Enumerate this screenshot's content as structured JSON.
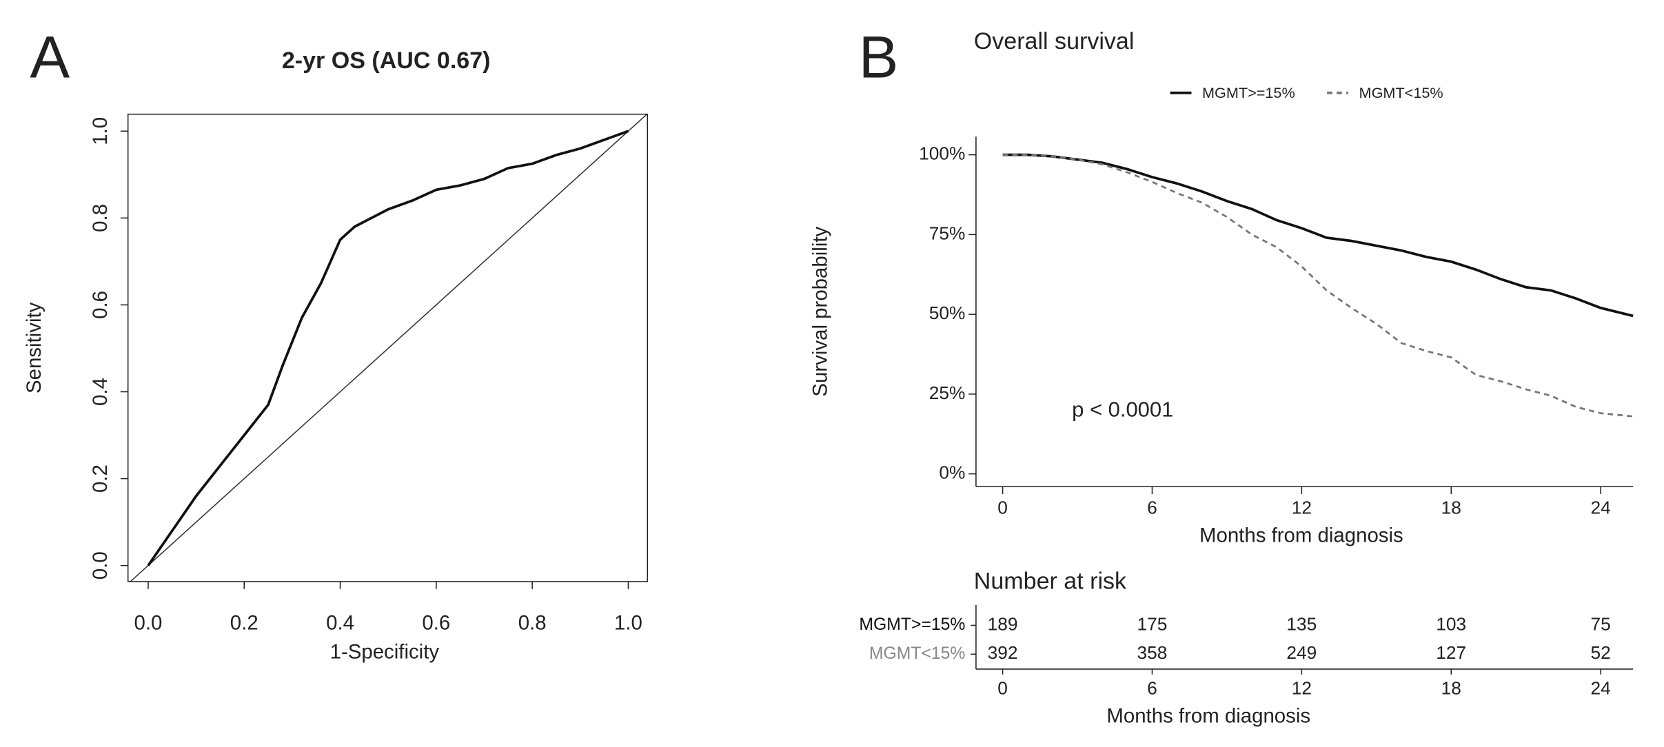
{
  "chart_data": [
    {
      "type": "line",
      "panel": "A",
      "title": "2-yr OS (AUC 0.67)",
      "xlabel": "1-Specificity",
      "ylabel": "Sensitivity",
      "xlim": [
        -0.042,
        1.04
      ],
      "ylim": [
        -0.037,
        1.039
      ],
      "xticks": [
        {
          "value": 0,
          "label": "0.0"
        },
        {
          "value": 0.2,
          "label": "0.2"
        },
        {
          "value": 0.4,
          "label": "0.4"
        },
        {
          "value": 0.6,
          "label": "0.6"
        },
        {
          "value": 0.8,
          "label": "0.8"
        },
        {
          "value": 1,
          "label": "1.0"
        }
      ],
      "yticks": [
        {
          "value": 0,
          "label": "0.0"
        },
        {
          "value": 0.2,
          "label": "0.2"
        },
        {
          "value": 0.4,
          "label": "0.4"
        },
        {
          "value": 0.6,
          "label": "0.6"
        },
        {
          "value": 0.8,
          "label": "0.8"
        },
        {
          "value": 1,
          "label": "1.0"
        }
      ],
      "diagonal": true,
      "x": [
        0,
        0.05,
        0.1,
        0.15,
        0.2,
        0.25,
        0.28,
        0.32,
        0.36,
        0.4,
        0.43,
        0.5,
        0.55,
        0.6,
        0.65,
        0.7,
        0.75,
        0.8,
        0.85,
        0.9,
        0.95,
        1
      ],
      "series": [
        {
          "color": "#111111",
          "linestyle": "solid",
          "values": [
            0,
            0.08,
            0.16,
            0.23,
            0.3,
            0.37,
            0.46,
            0.57,
            0.65,
            0.75,
            0.78,
            0.82,
            0.84,
            0.865,
            0.875,
            0.89,
            0.915,
            0.925,
            0.945,
            0.96,
            0.98,
            1
          ]
        }
      ]
    },
    {
      "type": "line",
      "panel": "B",
      "title": "Overall survival",
      "xlabel": "Months from diagnosis",
      "ylabel": "Survival probability",
      "annotation": "p < 0.0001",
      "legend": "top",
      "xlim": [
        -1.07,
        25.3
      ],
      "ylim": [
        -4,
        105.7
      ],
      "xticks": [
        0,
        6,
        12,
        18,
        24
      ],
      "yticks": [
        {
          "value": 0,
          "label": "0%"
        },
        {
          "value": 25,
          "label": "25%"
        },
        {
          "value": 50,
          "label": "50%"
        },
        {
          "value": 75,
          "label": "75%"
        },
        {
          "value": 100,
          "label": "100%"
        }
      ],
      "x": [
        0,
        1,
        2,
        3,
        4,
        5,
        6,
        7,
        8,
        9,
        10,
        11,
        12,
        13,
        14,
        15,
        16,
        17,
        18,
        19,
        20,
        21,
        22,
        23,
        24,
        25.3
      ],
      "series": [
        {
          "name": "MGMT>=15%",
          "color": "#111111",
          "linestyle": "solid",
          "values": [
            100,
            100,
            99.5,
            98.5,
            97.5,
            95.5,
            93,
            91,
            88.5,
            85.5,
            83,
            79.5,
            77,
            74,
            73,
            71.5,
            70,
            68,
            66.5,
            64,
            61,
            58.5,
            57.5,
            55,
            52,
            49.5
          ]
        },
        {
          "name": "MGMT<15%",
          "color": "#777777",
          "linestyle": "dashed",
          "values": [
            100,
            100,
            99.5,
            98.5,
            97,
            94.5,
            91.5,
            88,
            85,
            80.5,
            75,
            71,
            65,
            57.5,
            52,
            47,
            41,
            38.5,
            36.5,
            31,
            29,
            26.5,
            24.5,
            21,
            19,
            18
          ]
        }
      ]
    },
    {
      "type": "risk-table",
      "title": "Number at risk",
      "xlabel": "Months from diagnosis",
      "xlim": [
        -1.07,
        25.3
      ],
      "xticks": [
        0,
        6,
        12,
        18,
        24
      ],
      "rows": [
        {
          "name": "MGMT>=15%",
          "color": "#111111",
          "values": [
            189,
            175,
            135,
            103,
            75
          ]
        },
        {
          "name": "MGMT<15%",
          "color": "#888888",
          "values": [
            392,
            358,
            249,
            127,
            52
          ]
        }
      ]
    }
  ]
}
